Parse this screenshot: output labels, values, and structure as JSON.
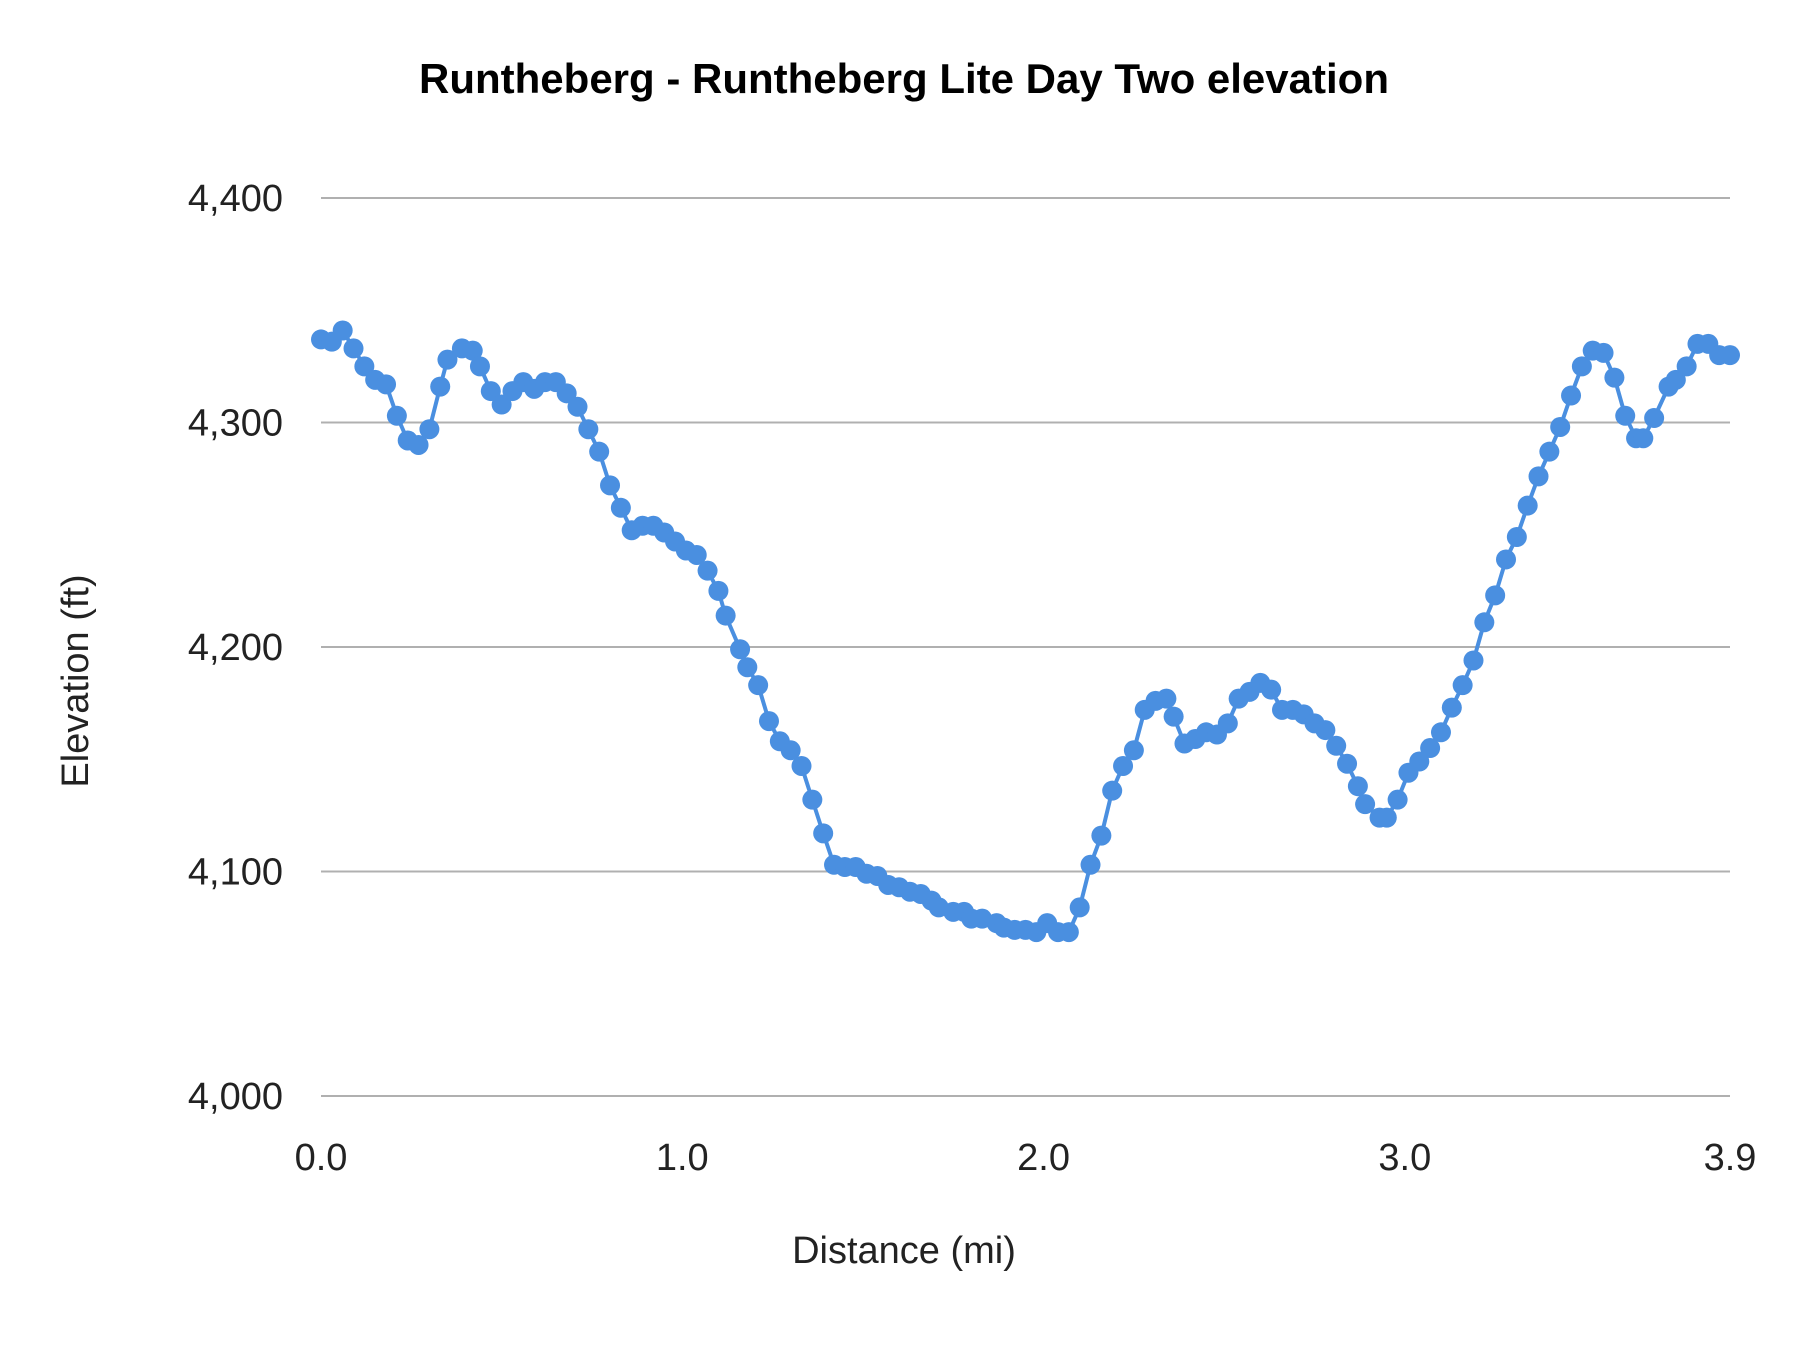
{
  "chart_data": {
    "type": "line",
    "title": "Runtheberg - Runtheberg Lite Day Two elevation",
    "xlabel": "Distance (mi)",
    "ylabel": "Elevation (ft)",
    "xlim": [
      0.0,
      3.9
    ],
    "ylim": [
      4000,
      4400
    ],
    "x_ticks": [
      "0.0",
      "1.0",
      "2.0",
      "3.0",
      "3.9"
    ],
    "x_tick_values": [
      0,
      1,
      2,
      3,
      3.9
    ],
    "y_ticks": [
      "4,000",
      "4,100",
      "4,200",
      "4,300",
      "4,400"
    ],
    "y_tick_values": [
      4000,
      4100,
      4200,
      4300,
      4400
    ],
    "grid": true,
    "markers": true,
    "color": "#4a8fe0",
    "x": [
      0.0,
      0.03,
      0.06,
      0.09,
      0.12,
      0.15,
      0.18,
      0.21,
      0.24,
      0.27,
      0.3,
      0.33,
      0.35,
      0.39,
      0.42,
      0.44,
      0.47,
      0.5,
      0.53,
      0.56,
      0.59,
      0.62,
      0.65,
      0.68,
      0.71,
      0.74,
      0.77,
      0.8,
      0.83,
      0.86,
      0.89,
      0.92,
      0.95,
      0.98,
      1.01,
      1.04,
      1.07,
      1.1,
      1.12,
      1.16,
      1.18,
      1.21,
      1.24,
      1.27,
      1.3,
      1.33,
      1.36,
      1.39,
      1.42,
      1.45,
      1.48,
      1.51,
      1.54,
      1.57,
      1.6,
      1.63,
      1.66,
      1.69,
      1.71,
      1.75,
      1.78,
      1.8,
      1.83,
      1.87,
      1.89,
      1.92,
      1.95,
      1.98,
      2.01,
      2.04,
      2.07,
      2.1,
      2.13,
      2.16,
      2.19,
      2.22,
      2.25,
      2.28,
      2.31,
      2.34,
      2.36,
      2.39,
      2.42,
      2.45,
      2.48,
      2.51,
      2.54,
      2.57,
      2.6,
      2.63,
      2.66,
      2.69,
      2.72,
      2.75,
      2.78,
      2.81,
      2.84,
      2.87,
      2.89,
      2.93,
      2.95,
      2.98,
      3.01,
      3.04,
      3.07,
      3.1,
      3.13,
      3.16,
      3.19,
      3.22,
      3.25,
      3.28,
      3.31,
      3.34,
      3.37,
      3.4,
      3.43,
      3.46,
      3.49,
      3.52,
      3.55,
      3.58,
      3.61,
      3.64,
      3.66,
      3.69,
      3.73,
      3.75,
      3.78,
      3.81,
      3.84,
      3.87,
      3.9
    ],
    "y": [
      4337,
      4336,
      4341,
      4333,
      4325,
      4319,
      4317,
      4303,
      4292,
      4290,
      4297,
      4316,
      4328,
      4333,
      4332,
      4325,
      4314,
      4308,
      4314,
      4318,
      4315,
      4318,
      4318,
      4313,
      4307,
      4297,
      4287,
      4272,
      4262,
      4252,
      4254,
      4254,
      4251,
      4247,
      4243,
      4241,
      4234,
      4225,
      4214,
      4199,
      4191,
      4183,
      4167,
      4158,
      4154,
      4147,
      4132,
      4117,
      4103,
      4102,
      4102,
      4099,
      4098,
      4094,
      4093,
      4091,
      4090,
      4087,
      4084,
      4082,
      4082,
      4079,
      4079,
      4077,
      4075,
      4074,
      4074,
      4073,
      4077,
      4073,
      4073,
      4084,
      4103,
      4116,
      4136,
      4147,
      4154,
      4172,
      4176,
      4177,
      4169,
      4157,
      4159,
      4162,
      4161,
      4166,
      4177,
      4180,
      4184,
      4181,
      4172,
      4172,
      4170,
      4166,
      4163,
      4156,
      4148,
      4138,
      4130,
      4124,
      4124,
      4132,
      4144,
      4149,
      4155,
      4162,
      4173,
      4183,
      4194,
      4211,
      4223,
      4239,
      4249,
      4263,
      4276,
      4287,
      4298,
      4312,
      4325,
      4332,
      4331,
      4320,
      4303,
      4293,
      4293,
      4302,
      4316,
      4319,
      4325,
      4335,
      4335,
      4330,
      4330
    ]
  }
}
